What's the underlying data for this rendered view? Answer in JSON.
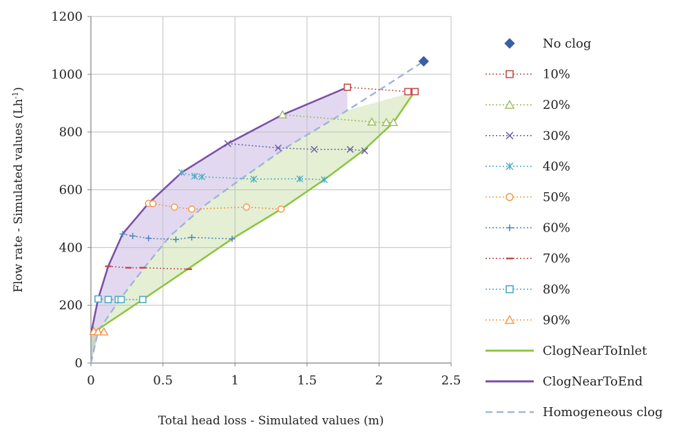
{
  "chart_data": {
    "type": "scatter",
    "xlabel": "Total head loss - Simulated values (m)",
    "ylabel_main": "Flow rate - Simulated values (Lh",
    "ylabel_sup": "-1",
    "ylabel_end": ")",
    "xlim": [
      0,
      2.5
    ],
    "ylim": [
      0,
      1200
    ],
    "xticks": [
      0,
      0.5,
      1,
      1.5,
      2,
      2.5
    ],
    "xtick_labels": [
      "0",
      "0.5",
      "1",
      "1.5",
      "2",
      "2.5"
    ],
    "yticks": [
      0,
      200,
      400,
      600,
      800,
      1000,
      1200
    ],
    "ytick_labels": [
      "0",
      "200",
      "400",
      "600",
      "800",
      "1000",
      "1200"
    ],
    "grid": true,
    "legend_position": "right",
    "series": [
      {
        "name": "No clog",
        "kind": "marker",
        "marker": "diamond",
        "color": "#3a5fa8",
        "points": [
          [
            2.31,
            1045
          ]
        ]
      },
      {
        "name": "10%",
        "kind": "dotted",
        "marker": "square",
        "color": "#c0504d",
        "points": [
          [
            1.78,
            955
          ],
          [
            2.2,
            940
          ],
          [
            2.25,
            940
          ]
        ]
      },
      {
        "name": "20%",
        "kind": "dotted",
        "marker": "triangle",
        "color": "#9bbb59",
        "points": [
          [
            1.33,
            860
          ],
          [
            1.95,
            835
          ],
          [
            2.05,
            833
          ],
          [
            2.1,
            833
          ]
        ]
      },
      {
        "name": "30%",
        "kind": "dotted",
        "marker": "x",
        "color": "#7060a8",
        "points": [
          [
            0.95,
            760
          ],
          [
            1.3,
            745
          ],
          [
            1.55,
            740
          ],
          [
            1.8,
            740
          ],
          [
            1.9,
            735
          ]
        ]
      },
      {
        "name": "40%",
        "kind": "dotted",
        "marker": "asterisk",
        "color": "#4bacc6",
        "points": [
          [
            0.63,
            660
          ],
          [
            0.72,
            647
          ],
          [
            0.77,
            645
          ],
          [
            1.13,
            637
          ],
          [
            1.45,
            638
          ],
          [
            1.62,
            635
          ]
        ]
      },
      {
        "name": "50%",
        "kind": "dotted",
        "marker": "circle",
        "color": "#f79646",
        "points": [
          [
            0.4,
            553
          ],
          [
            0.43,
            552
          ],
          [
            0.58,
            540
          ],
          [
            0.7,
            533
          ],
          [
            1.08,
            540
          ],
          [
            1.32,
            533
          ]
        ]
      },
      {
        "name": "60%",
        "kind": "dotted",
        "marker": "plus",
        "color": "#4f81bd",
        "points": [
          [
            0.22,
            447
          ],
          [
            0.29,
            440
          ],
          [
            0.4,
            432
          ],
          [
            0.59,
            428
          ],
          [
            0.7,
            435
          ],
          [
            0.98,
            430
          ]
        ]
      },
      {
        "name": "70%",
        "kind": "dotted",
        "marker": "dash",
        "color": "#c0504d",
        "points": [
          [
            0.12,
            335
          ],
          [
            0.26,
            330
          ],
          [
            0.36,
            330
          ],
          [
            0.68,
            325
          ]
        ]
      },
      {
        "name": "80%",
        "kind": "dotted",
        "marker": "square",
        "color": "#4bacc6",
        "points": [
          [
            0.05,
            222
          ],
          [
            0.12,
            220
          ],
          [
            0.19,
            220
          ],
          [
            0.21,
            220
          ],
          [
            0.36,
            220
          ]
        ]
      },
      {
        "name": "90%",
        "kind": "dotted",
        "marker": "triangle",
        "color": "#f79646",
        "points": [
          [
            0.02,
            110
          ],
          [
            0.05,
            108
          ],
          [
            0.09,
            108
          ]
        ]
      },
      {
        "name": "ClogNearToInlet",
        "kind": "solid",
        "color": "#8cc63f",
        "points": [
          [
            0,
            100
          ],
          [
            0.36,
            220
          ],
          [
            0.68,
            328
          ],
          [
            0.98,
            430
          ],
          [
            1.32,
            533
          ],
          [
            1.62,
            635
          ],
          [
            1.9,
            740
          ],
          [
            2.1,
            833
          ],
          [
            2.24,
            935
          ]
        ]
      },
      {
        "name": "ClogNearToEnd",
        "kind": "solid",
        "color": "#7b4fa8",
        "points": [
          [
            0,
            100
          ],
          [
            0.05,
            222
          ],
          [
            0.12,
            335
          ],
          [
            0.22,
            447
          ],
          [
            0.4,
            553
          ],
          [
            0.63,
            660
          ],
          [
            0.95,
            760
          ],
          [
            1.33,
            860
          ],
          [
            1.78,
            955
          ]
        ]
      },
      {
        "name": "Homogeneous clog",
        "kind": "dashed",
        "color": "#9fb3d8",
        "points": [
          [
            0,
            0
          ],
          [
            0.05,
            110
          ],
          [
            0.2,
            220
          ],
          [
            0.37,
            330
          ],
          [
            0.55,
            440
          ],
          [
            0.8,
            550
          ],
          [
            1.05,
            640
          ],
          [
            1.35,
            745
          ],
          [
            1.7,
            850
          ],
          [
            2.0,
            945
          ],
          [
            2.31,
            1045
          ]
        ]
      }
    ]
  }
}
